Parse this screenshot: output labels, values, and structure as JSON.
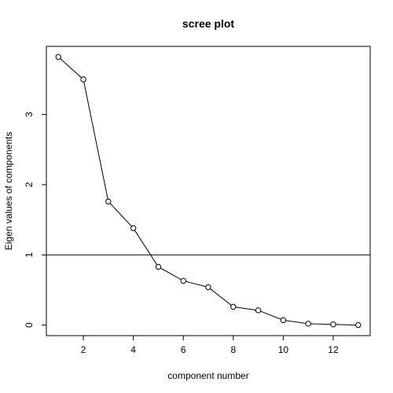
{
  "chart_data": {
    "type": "line",
    "title": "scree plot",
    "xlabel": "component number",
    "ylabel": "Eigen values of components",
    "x": [
      1,
      2,
      3,
      4,
      5,
      6,
      7,
      8,
      9,
      10,
      11,
      12,
      13
    ],
    "series": [
      {
        "values": [
          3.82,
          3.5,
          1.76,
          1.38,
          0.83,
          0.63,
          0.54,
          0.26,
          0.21,
          0.07,
          0.02,
          0.01,
          0.0
        ]
      }
    ],
    "hline": 1,
    "xlim": [
      0.52,
      13.48
    ],
    "ylim": [
      -0.15,
      3.97
    ],
    "xticks": [
      2,
      4,
      6,
      8,
      10,
      12
    ],
    "yticks": [
      0,
      1,
      2,
      3
    ],
    "markers": "open-circle",
    "grid": false,
    "legend": "none"
  }
}
